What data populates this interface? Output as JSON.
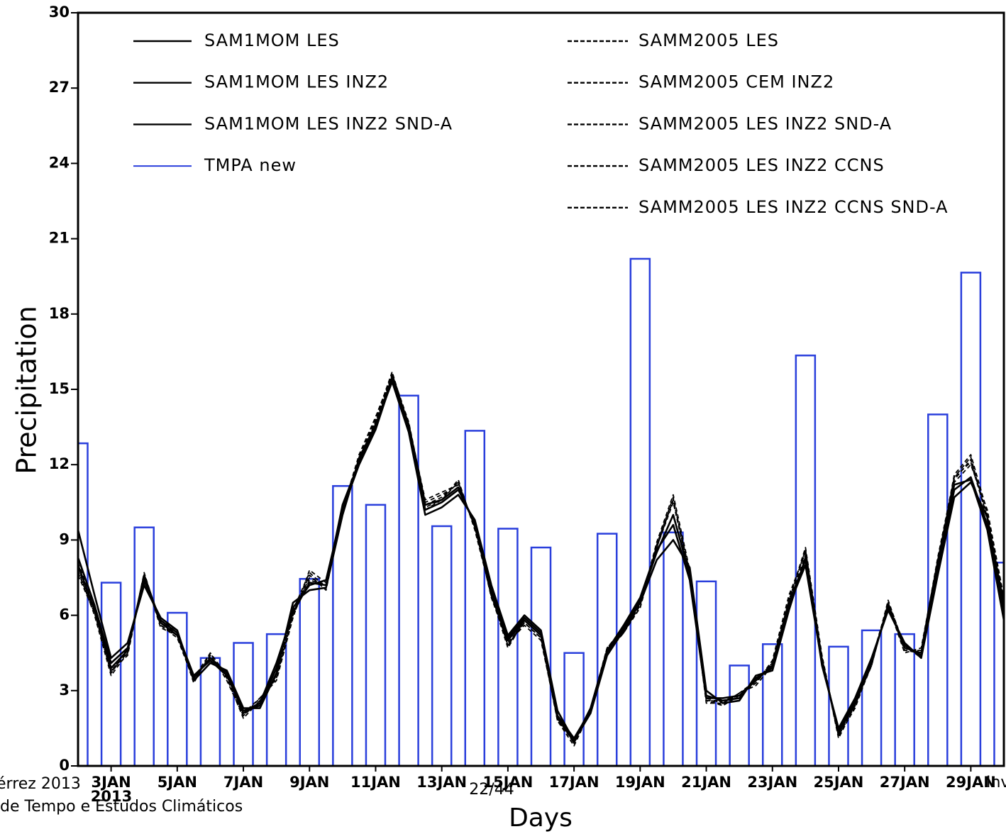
{
  "chart_data": {
    "type": "combo",
    "ylabel": "Precipitation",
    "xlabel": "Days",
    "x_year_label": "2013",
    "xlim": [
      2,
      30
    ],
    "ylim": [
      0,
      30
    ],
    "yticks": [
      0,
      3,
      6,
      9,
      12,
      15,
      18,
      21,
      24,
      27,
      30
    ],
    "xticks": [
      {
        "value": 3,
        "label": "3JAN"
      },
      {
        "value": 5,
        "label": "5JAN"
      },
      {
        "value": 7,
        "label": "7JAN"
      },
      {
        "value": 9,
        "label": "9JAN"
      },
      {
        "value": 11,
        "label": "11JAN"
      },
      {
        "value": 13,
        "label": "13JAN"
      },
      {
        "value": 15,
        "label": "15JAN"
      },
      {
        "value": 17,
        "label": "17JAN"
      },
      {
        "value": 19,
        "label": "19JAN"
      },
      {
        "value": 21,
        "label": "21JAN"
      },
      {
        "value": 23,
        "label": "23JAN"
      },
      {
        "value": 25,
        "label": "25JAN"
      },
      {
        "value": 27,
        "label": "27JAN"
      },
      {
        "value": 29,
        "label": "29JAN"
      }
    ],
    "x": [
      2,
      2.5,
      3,
      3.5,
      4,
      4.5,
      5,
      5.5,
      6,
      6.5,
      7,
      7.5,
      8,
      8.5,
      9,
      9.5,
      10,
      10.5,
      11,
      11.5,
      12,
      12.5,
      13,
      13.5,
      14,
      14.5,
      15,
      15.5,
      16,
      16.5,
      17,
      17.5,
      18,
      18.5,
      19,
      19.5,
      20,
      20.5,
      21,
      21.5,
      22,
      22.5,
      23,
      23.5,
      24,
      24.5,
      25,
      25.5,
      26,
      26.5,
      27,
      27.5,
      28,
      28.5,
      29,
      29.5,
      30
    ],
    "series": [
      {
        "name": "SAM1MOM LES",
        "type": "line",
        "linestyle": "solid",
        "color": "#000000",
        "values": [
          8.3,
          6.4,
          4.1,
          4.7,
          7.4,
          5.8,
          5.3,
          3.6,
          4.2,
          3.6,
          2.2,
          2.4,
          3.9,
          6.3,
          7.2,
          7.4,
          10.2,
          12.0,
          13.4,
          15.4,
          13.4,
          10.2,
          10.5,
          11.0,
          9.7,
          7.0,
          5.1,
          5.9,
          5.3,
          2.0,
          1.1,
          2.2,
          4.5,
          5.5,
          6.6,
          8.5,
          10.0,
          7.6,
          2.8,
          2.6,
          2.7,
          3.5,
          3.9,
          6.4,
          8.0,
          4.1,
          1.4,
          2.6,
          4.2,
          6.3,
          4.8,
          4.4,
          7.8,
          11.0,
          11.5,
          9.6,
          6.0
        ]
      },
      {
        "name": "SAM1MOM LES INZ2",
        "type": "line",
        "linestyle": "solid",
        "color": "#000000",
        "values": [
          9.4,
          6.8,
          4.3,
          4.9,
          7.2,
          5.9,
          5.4,
          3.4,
          4.1,
          3.8,
          2.3,
          2.3,
          3.7,
          6.5,
          7.0,
          7.1,
          10.0,
          12.2,
          13.6,
          15.3,
          13.3,
          10.0,
          10.3,
          10.8,
          9.8,
          7.2,
          5.2,
          6.0,
          5.4,
          2.2,
          1.0,
          2.1,
          4.4,
          5.4,
          6.5,
          8.2,
          9.0,
          7.9,
          3.0,
          2.5,
          2.6,
          3.6,
          3.8,
          6.2,
          8.3,
          4.0,
          1.5,
          2.7,
          4.3,
          6.2,
          4.9,
          4.3,
          7.6,
          10.7,
          11.3,
          9.9,
          6.3
        ]
      },
      {
        "name": "SAM1MOM LES INZ2 SND-A",
        "type": "line",
        "linestyle": "solid",
        "color": "#000000",
        "values": [
          8.0,
          6.2,
          3.9,
          4.6,
          7.6,
          5.7,
          5.2,
          3.5,
          4.3,
          3.7,
          2.1,
          2.5,
          4.1,
          6.1,
          7.3,
          7.2,
          10.4,
          12.1,
          13.5,
          15.5,
          13.6,
          10.4,
          10.6,
          11.1,
          9.6,
          6.8,
          5.0,
          5.8,
          5.2,
          1.9,
          1.0,
          2.3,
          4.6,
          5.6,
          6.7,
          8.6,
          9.6,
          7.4,
          2.7,
          2.7,
          2.8,
          3.4,
          4.0,
          6.5,
          8.2,
          4.2,
          1.3,
          2.5,
          4.1,
          6.4,
          4.7,
          4.5,
          8.0,
          11.2,
          11.4,
          9.4,
          5.8
        ]
      },
      {
        "name": "TMPA new",
        "type": "bar",
        "color": "#2a3fdc",
        "x": [
          2,
          3,
          4,
          5,
          6,
          7,
          8,
          9,
          10,
          11,
          12,
          13,
          14,
          15,
          16,
          17,
          18,
          19,
          20,
          21,
          22,
          23,
          24,
          25,
          26,
          27,
          28,
          29,
          30
        ],
        "values": [
          12.85,
          7.3,
          9.5,
          6.1,
          4.3,
          4.9,
          5.25,
          7.45,
          11.15,
          10.4,
          14.75,
          9.55,
          13.35,
          9.45,
          8.7,
          4.5,
          9.25,
          20.2,
          9.3,
          7.35,
          4.0,
          4.85,
          16.35,
          4.75,
          5.4,
          5.25,
          14.0,
          19.65,
          8.1
        ]
      },
      {
        "name": "SAMM2005 LES",
        "type": "line",
        "linestyle": "dashed",
        "color": "#000000",
        "values": [
          7.8,
          6.0,
          3.6,
          4.5,
          7.7,
          5.6,
          5.1,
          3.4,
          4.4,
          3.5,
          1.9,
          2.6,
          3.5,
          6.0,
          7.6,
          7.0,
          10.1,
          12.3,
          13.8,
          15.7,
          13.5,
          10.4,
          10.7,
          11.3,
          9.5,
          6.9,
          4.8,
          5.7,
          5.1,
          1.8,
          0.8,
          2.2,
          4.7,
          5.4,
          6.3,
          8.8,
          10.7,
          7.5,
          2.6,
          2.4,
          2.9,
          3.3,
          4.1,
          6.7,
          8.6,
          4.3,
          1.1,
          2.4,
          4.0,
          6.5,
          4.6,
          4.6,
          8.3,
          11.5,
          12.3,
          9.8,
          6.4
        ]
      },
      {
        "name": "SAMM2005 CEM INZ2",
        "type": "line",
        "linestyle": "dashed",
        "color": "#000000",
        "values": [
          8.1,
          6.3,
          3.7,
          4.6,
          7.5,
          5.7,
          5.3,
          3.3,
          4.5,
          3.4,
          2.0,
          2.7,
          3.4,
          5.9,
          7.8,
          7.3,
          10.3,
          12.2,
          13.7,
          15.6,
          13.7,
          10.5,
          10.8,
          11.2,
          9.6,
          6.7,
          4.9,
          5.6,
          5.0,
          1.9,
          0.9,
          2.3,
          4.6,
          5.3,
          6.4,
          8.7,
          10.6,
          7.7,
          2.5,
          2.5,
          2.9,
          3.2,
          4.0,
          6.6,
          8.7,
          4.4,
          1.2,
          2.3,
          4.1,
          6.4,
          4.5,
          4.7,
          8.2,
          11.4,
          12.2,
          10.0,
          6.6
        ]
      },
      {
        "name": "SAMM2005 LES INZ2 SND-A",
        "type": "line",
        "linestyle": "dashed",
        "color": "#000000",
        "values": [
          7.6,
          6.1,
          3.8,
          4.4,
          7.6,
          5.5,
          5.2,
          3.5,
          4.3,
          3.6,
          2.1,
          2.5,
          3.6,
          6.1,
          7.5,
          7.2,
          10.2,
          12.4,
          13.9,
          15.6,
          13.4,
          10.3,
          10.6,
          11.4,
          9.4,
          6.8,
          4.7,
          5.8,
          5.2,
          1.8,
          1.0,
          2.1,
          4.6,
          5.4,
          6.4,
          8.9,
          10.8,
          7.8,
          2.7,
          2.4,
          2.8,
          3.3,
          4.2,
          6.8,
          8.5,
          4.2,
          1.2,
          2.5,
          4.0,
          6.6,
          4.7,
          4.4,
          8.1,
          11.6,
          12.4,
          10.1,
          6.5
        ]
      },
      {
        "name": "SAMM2005 LES INZ2 CCNS",
        "type": "line",
        "linestyle": "dashed",
        "color": "#000000",
        "values": [
          7.9,
          6.1,
          3.7,
          4.7,
          7.3,
          5.8,
          5.4,
          3.4,
          4.4,
          3.5,
          2.0,
          2.6,
          3.6,
          6.2,
          7.7,
          7.1,
          10.0,
          12.3,
          13.6,
          15.5,
          13.6,
          10.6,
          10.9,
          11.2,
          9.5,
          7.1,
          4.9,
          5.7,
          5.1,
          2.0,
          0.9,
          2.2,
          4.5,
          5.3,
          6.3,
          8.7,
          10.5,
          7.6,
          2.6,
          2.6,
          2.8,
          3.4,
          4.0,
          6.5,
          8.4,
          4.3,
          1.3,
          2.4,
          4.2,
          6.5,
          4.8,
          4.3,
          8.0,
          11.3,
          12.0,
          10.2,
          6.7
        ]
      },
      {
        "name": "SAMM2005 LES INZ2 CCNS SND-A",
        "type": "line",
        "linestyle": "dashed",
        "color": "#000000",
        "values": [
          7.7,
          6.2,
          3.8,
          4.5,
          7.5,
          5.6,
          5.2,
          3.5,
          4.5,
          3.6,
          2.1,
          2.7,
          3.5,
          6.0,
          7.4,
          7.2,
          10.1,
          12.2,
          13.7,
          15.6,
          13.5,
          10.2,
          10.6,
          11.3,
          9.5,
          6.9,
          4.8,
          5.8,
          5.2,
          1.9,
          1.0,
          2.3,
          4.7,
          5.5,
          6.5,
          8.8,
          10.6,
          7.7,
          2.7,
          2.5,
          2.9,
          3.4,
          4.1,
          6.6,
          8.6,
          4.2,
          1.2,
          2.4,
          4.1,
          6.4,
          4.6,
          4.5,
          8.1,
          11.5,
          12.1,
          9.9,
          6.5
        ]
      }
    ]
  },
  "footer": {
    "left_top": "érrez 2013",
    "left_bottom": "de Tempo e Estudos Climáticos",
    "page": "22/44",
    "right": "Inv"
  }
}
